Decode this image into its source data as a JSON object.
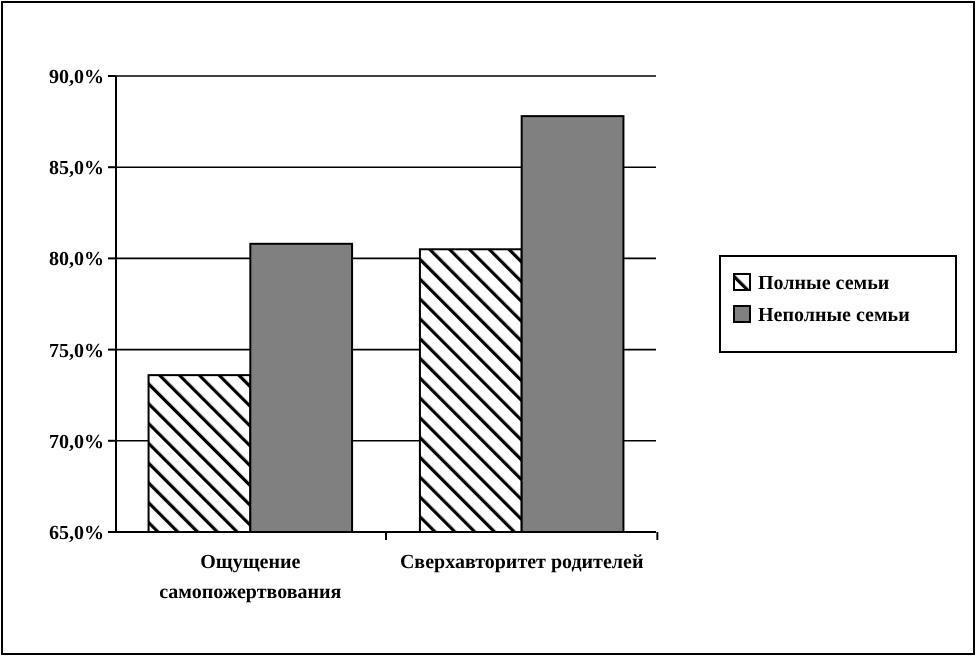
{
  "chart_data": {
    "type": "bar",
    "categories": [
      "Ощущение самопожертвования",
      "Сверхавторитет родителей"
    ],
    "series": [
      {
        "name": "Полные семьи",
        "color": "#ffffff",
        "values": [
          73.6,
          80.5
        ]
      },
      {
        "name": "Неполные семьи",
        "color": "#808080",
        "values": [
          80.8,
          87.8
        ]
      }
    ],
    "ylim": [
      65,
      90
    ],
    "yticks": [
      {
        "value": 65,
        "label": "65,0%"
      },
      {
        "value": 70,
        "label": "70,0%"
      },
      {
        "value": 75,
        "label": "75,0%"
      },
      {
        "value": 80,
        "label": "80,0%"
      },
      {
        "value": 85,
        "label": "85,0%"
      },
      {
        "value": 90,
        "label": "90,0%"
      }
    ],
    "grid": "y",
    "legend": "right"
  }
}
